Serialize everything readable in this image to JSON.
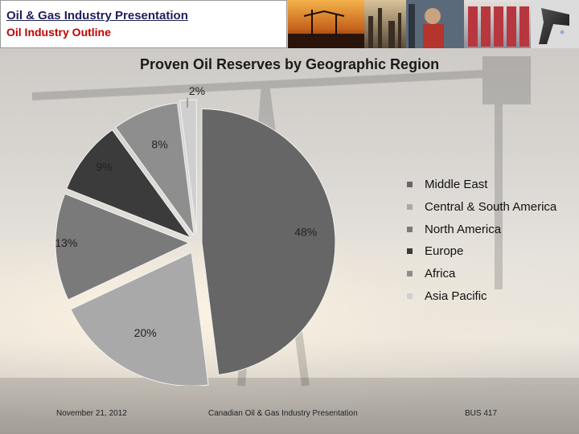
{
  "header": {
    "title": "Oil & Gas Industry Presentation",
    "subtitle": "Oil Industry Outline"
  },
  "chart_data": {
    "type": "pie",
    "title": "Proven Oil Reserves by Geographic Region",
    "categories": [
      "Middle East",
      "Central & South America",
      "North America",
      "Europe",
      "Africa",
      "Asia Pacific"
    ],
    "values": [
      48,
      20,
      13,
      9,
      8,
      2
    ],
    "labels": [
      "48%",
      "20%",
      "13%",
      "9%",
      "8%",
      "2%"
    ],
    "colors": [
      "#666666",
      "#a9a9a9",
      "#7a7a7a",
      "#3b3b3b",
      "#8e8e8e",
      "#cfcfcf"
    ],
    "exploded": true,
    "legend_position": "right"
  },
  "footer": {
    "date": "November 21, 2012",
    "center": "Canadian Oil & Gas Industry Presentation",
    "right": "BUS 417"
  }
}
